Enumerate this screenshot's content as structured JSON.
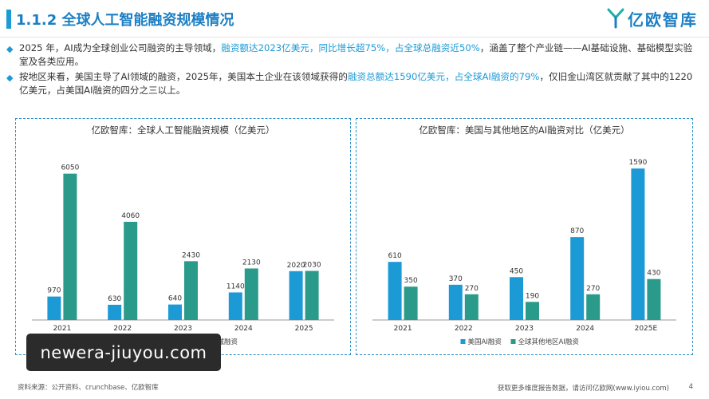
{
  "header": {
    "title": "1.1.2 全球人工智能融资规模情况",
    "logo_text": "亿欧智库"
  },
  "bullets": [
    {
      "segments": [
        {
          "t": "2025 年，AI成为全球创业公司融资的主导领域，",
          "h": false
        },
        {
          "t": "融资额达2023亿美元，同比增长超75%，占全球总融资近50%",
          "h": true
        },
        {
          "t": "，涵盖了整个产业链——AI基础设施、基础模型实验室及各类应用。",
          "h": false
        }
      ]
    },
    {
      "segments": [
        {
          "t": "按地区来看，美国主导了AI领域的融资，2025年，美国本土企业在该领域获得的",
          "h": false
        },
        {
          "t": "融资总额达1590亿美元，占全球AI融资的79%",
          "h": true
        },
        {
          "t": "，仅旧金山湾区就贡献了其中的1220亿美元，占美国AI融资的四分之三以上。",
          "h": false
        }
      ]
    }
  ],
  "colors": {
    "series1": "#1c9ad6",
    "series2": "#2a9a8a",
    "accent": "#1c7fc4"
  },
  "chart_data": [
    {
      "type": "bar",
      "title": "亿欧智库：全球人工智能融资规模（亿美元）",
      "categories": [
        "2021",
        "2022",
        "2023",
        "2024",
        "2025"
      ],
      "series": [
        {
          "name": "AI创业公司融资",
          "values": [
            970,
            630,
            640,
            1140,
            2020
          ]
        },
        {
          "name": "其他领域融资",
          "values": [
            6050,
            4060,
            2430,
            2130,
            2030
          ]
        }
      ],
      "ylim": [
        0,
        6500
      ],
      "grid": false,
      "legend": "bottom"
    },
    {
      "type": "bar",
      "title": "亿欧智库：美国与其他地区的AI融资对比（亿美元）",
      "categories": [
        "2021",
        "2022",
        "2023",
        "2024",
        "2025E"
      ],
      "series": [
        {
          "name": "美国AI融资",
          "values": [
            610,
            370,
            450,
            870,
            1590
          ]
        },
        {
          "name": "全球其他地区AI融资",
          "values": [
            350,
            270,
            190,
            270,
            430
          ]
        }
      ],
      "ylim": [
        0,
        1650
      ],
      "grid": false,
      "legend": "bottom"
    }
  ],
  "watermark": "newera-jiuyou.com",
  "source": "资料来源：公开资料、crunchbase、亿欧智库",
  "footer": "获取更多维度报告数据，请访问亿欧网(www.iyiou.com)",
  "page_number": "4"
}
